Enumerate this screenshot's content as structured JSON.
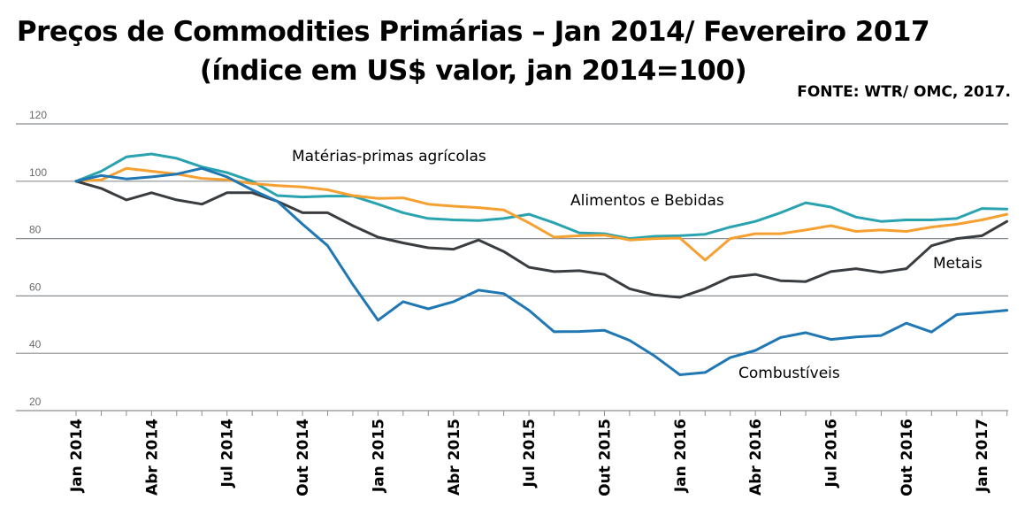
{
  "header": {
    "title_line1": "Preços de Commodities Primárias – Jan 2014/ Fevereiro 2017",
    "title_line2": "(índice em US$ valor, jan 2014=100)",
    "source": "FONTE: WTR/ OMC, 2017."
  },
  "chart_data": {
    "type": "line",
    "title": "Preços de Commodities Primárias – Jan 2014/ Fevereiro 2017",
    "subtitle": "(índice em US$ valor, jan 2014=100)",
    "xlabel": "",
    "ylabel": "",
    "ylim": [
      20,
      120
    ],
    "yticks": [
      20,
      40,
      60,
      80,
      100,
      120
    ],
    "grid": true,
    "legend": "inline annotations",
    "x": [
      "Jan 2014",
      "Fev 2014",
      "Mar 2014",
      "Abr 2014",
      "Mai 2014",
      "Jun 2014",
      "Jul 2014",
      "Ago 2014",
      "Set 2014",
      "Out 2014",
      "Nov 2014",
      "Dez 2014",
      "Jan 2015",
      "Fev 2015",
      "Mar 2015",
      "Abr 2015",
      "Mai 2015",
      "Jun 2015",
      "Jul 2015",
      "Ago 2015",
      "Set 2015",
      "Out 2015",
      "Nov 2015",
      "Dez 2015",
      "Jan 2016",
      "Fev 2016",
      "Mar 2016",
      "Abr 2016",
      "Mai 2016",
      "Jun 2016",
      "Jul 2016",
      "Ago 2016",
      "Set 2016",
      "Out 2016",
      "Nov 2016",
      "Dez 2016",
      "Jan 2017",
      "Fev 2017"
    ],
    "x_tick_labels": [
      "Jan 2014",
      "Abr 2014",
      "Jul 2014",
      "Out 2014",
      "Jan 2015",
      "Abr 2015",
      "Jul 2015",
      "Out 2015",
      "Jan 2016",
      "Abr 2016",
      "Jul 2016",
      "Out 2016",
      "Jan 2017"
    ],
    "series": [
      {
        "name": "Matérias-primas agrícolas",
        "color": "#2aa3b0",
        "values": [
          100,
          103.5,
          108.5,
          109.5,
          108,
          105,
          103,
          100,
          95,
          94.5,
          94.8,
          94.8,
          92,
          89,
          87,
          86.5,
          86.3,
          87,
          88.5,
          85.5,
          82,
          81.7,
          80,
          80.8,
          81,
          81.5,
          84,
          86,
          89,
          92.5,
          91,
          87.5,
          86,
          86.5,
          86.5,
          87,
          90.5,
          90.3
        ]
      },
      {
        "name": "Alimentos e Bebidas",
        "color": "#f5a030",
        "values": [
          100,
          100.5,
          104.5,
          103.5,
          102.5,
          101,
          100.5,
          99.2,
          98.5,
          98,
          97,
          95,
          94,
          94.2,
          92,
          91.3,
          90.8,
          90,
          85.5,
          80.5,
          81,
          81.2,
          79.5,
          80,
          80.2,
          72.5,
          80,
          81.7,
          81.7,
          83,
          84.5,
          82.5,
          83,
          82.5,
          84,
          85,
          86.5,
          88.5
        ]
      },
      {
        "name": "Metais",
        "color": "#3a3d40",
        "values": [
          100,
          97.5,
          93.5,
          96,
          93.5,
          92,
          96,
          96,
          93,
          89,
          89,
          84.5,
          80.5,
          78.5,
          76.8,
          76.3,
          79.5,
          75.5,
          70,
          68.5,
          68.8,
          67.5,
          62.5,
          60.3,
          59.5,
          62.5,
          66.5,
          67.5,
          65.3,
          65,
          68.5,
          69.5,
          68.2,
          69.5,
          77.5,
          80,
          81,
          86
        ]
      },
      {
        "name": "Combustíveis",
        "color": "#1f77b4",
        "values": [
          100,
          102,
          100.8,
          101.5,
          102.5,
          104.5,
          101.5,
          97,
          93,
          85,
          77.5,
          64,
          51.5,
          58,
          55.5,
          58,
          62,
          60.8,
          55,
          47.5,
          47.6,
          48,
          44.5,
          39,
          32.5,
          33.3,
          38.5,
          41,
          45.5,
          47.2,
          44.8,
          45.7,
          46.2,
          50.5,
          47.4,
          53.5,
          54.2,
          55
        ]
      }
    ],
    "annotations": [
      "Matérias-primas agrícolas",
      "Alimentos e Bebidas",
      "Metais",
      "Combustíveis"
    ]
  }
}
